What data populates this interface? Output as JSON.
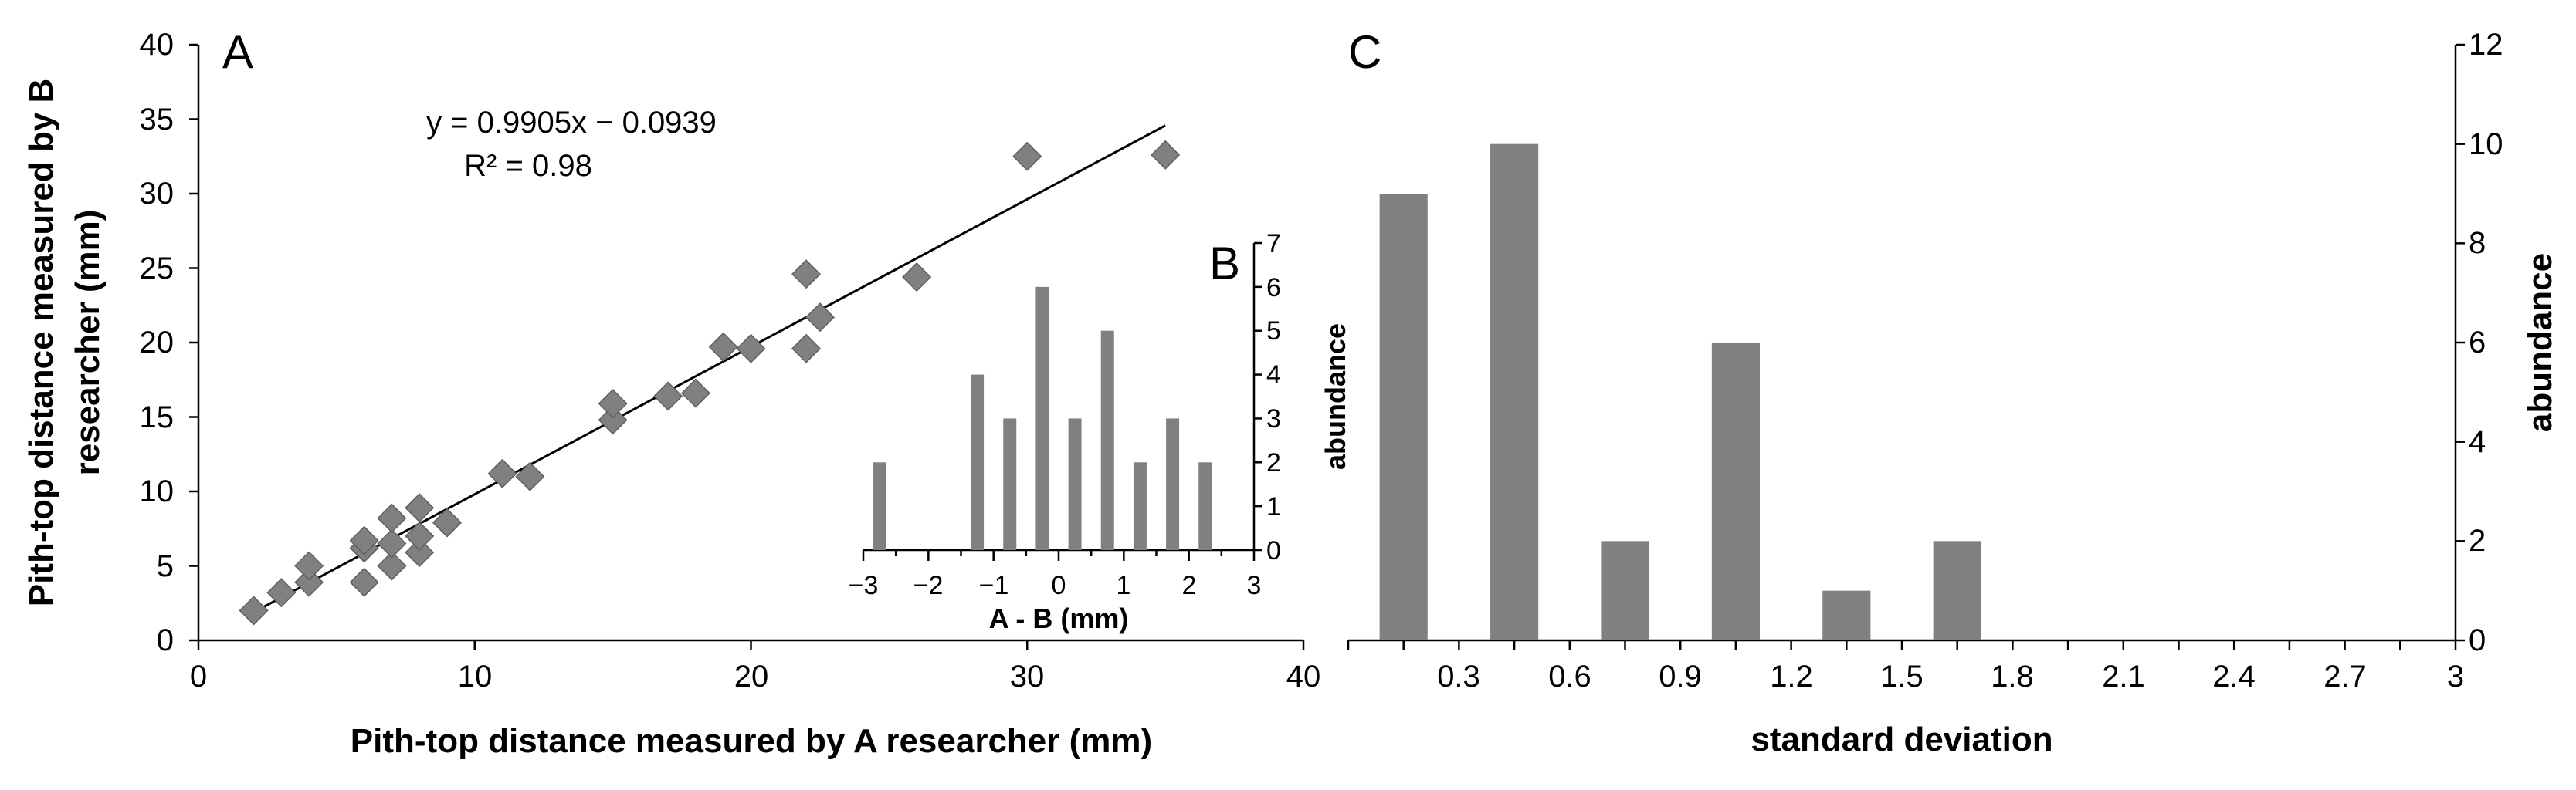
{
  "colors": {
    "mark": "#808080",
    "mark_stroke": "#606060",
    "axis": "#000000",
    "fit_line": "#000000"
  },
  "chart_data": [
    {
      "panel": "A",
      "type": "scatter",
      "xlabel": "Pith-top distance measured by A researcher (mm)",
      "ylabel_line1": "Pith-top distance measured by B",
      "ylabel_line2": "researcher (mm)",
      "xlim": [
        0,
        40
      ],
      "ylim": [
        0,
        40
      ],
      "xticks": [
        "0",
        "10",
        "20",
        "30",
        "40"
      ],
      "yticks": [
        "0",
        "5",
        "10",
        "15",
        "20",
        "25",
        "30",
        "35",
        "40"
      ],
      "equation": "y = 0.9905x − 0.0939",
      "r2": "R² = 0.98",
      "fit": {
        "slope": 0.9905,
        "intercept": -0.0939,
        "x_range": [
          2,
          35
        ]
      },
      "points": [
        [
          2,
          2
        ],
        [
          3,
          3.2
        ],
        [
          4,
          3.9
        ],
        [
          4,
          5
        ],
        [
          6,
          3.9
        ],
        [
          6,
          6.2
        ],
        [
          6,
          6.7
        ],
        [
          7,
          5
        ],
        [
          7,
          6.5
        ],
        [
          7,
          8.2
        ],
        [
          8,
          5.9
        ],
        [
          8,
          7
        ],
        [
          8,
          8.9
        ],
        [
          9,
          7.9
        ],
        [
          11,
          11.2
        ],
        [
          12,
          11
        ],
        [
          15,
          14.8
        ],
        [
          15,
          15.9
        ],
        [
          17,
          16.4
        ],
        [
          18,
          16.6
        ],
        [
          19,
          19.7
        ],
        [
          20,
          19.6
        ],
        [
          22,
          19.6
        ],
        [
          22,
          24.6
        ],
        [
          22.5,
          21.7
        ],
        [
          26,
          24.4
        ],
        [
          30,
          32.5
        ],
        [
          35,
          32.6
        ]
      ]
    },
    {
      "panel": "B",
      "type": "bar",
      "xlabel": "A - B (mm)",
      "ylabel": "abundance",
      "xlim": [
        -3,
        3
      ],
      "ylim": [
        0,
        7
      ],
      "xticks": [
        "−3",
        "−2",
        "−1",
        "0",
        "1",
        "2",
        "3"
      ],
      "yticks": [
        "0",
        "1",
        "2",
        "3",
        "4",
        "5",
        "6",
        "7"
      ],
      "x": [
        -2.75,
        -1.25,
        -0.75,
        -0.25,
        0.25,
        0.75,
        1.25,
        1.75,
        2.25
      ],
      "values": [
        2,
        4,
        3,
        6,
        3,
        5,
        2,
        3,
        2
      ]
    },
    {
      "panel": "C",
      "type": "bar",
      "xlabel": "standard deviation",
      "ylabel": "abundance",
      "xlim": [
        0,
        3
      ],
      "ylim": [
        0,
        12
      ],
      "xticks": [
        "0.3",
        "0.6",
        "0.9",
        "1.2",
        "1.5",
        "1.8",
        "2.1",
        "2.4",
        "2.7",
        "3"
      ],
      "yticks": [
        "0",
        "2",
        "4",
        "6",
        "8",
        "10",
        "12"
      ],
      "x": [
        0.15,
        0.45,
        0.75,
        1.05,
        1.35,
        1.65
      ],
      "values": [
        9,
        10,
        2,
        6,
        1,
        2
      ]
    }
  ]
}
